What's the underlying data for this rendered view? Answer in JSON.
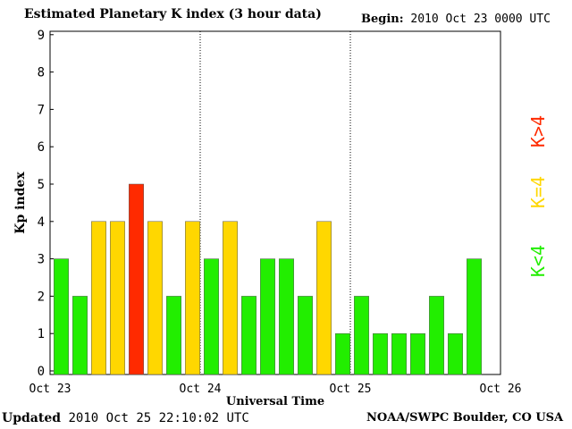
{
  "header": {
    "title": "Estimated Planetary K index (3 hour data)",
    "begin_label": "Begin:",
    "begin_value": "2010 Oct 23 0000 UTC"
  },
  "footer": {
    "updated_label": "Updated",
    "updated_value": "2010 Oct 25 22:10:02 UTC",
    "credit": "NOAA/SWPC Boulder, CO USA"
  },
  "legend": [
    {
      "label": "K>4",
      "color": "#ff2a00"
    },
    {
      "label": "K=4",
      "color": "#ffd700"
    },
    {
      "label": "K<4",
      "color": "#22ee00"
    }
  ],
  "colors": {
    "low": "#22ee00",
    "mid": "#ffd700",
    "high": "#ff2a00"
  },
  "chart_data": {
    "type": "bar",
    "xlabel": "Universal Time",
    "ylabel": "Kp index",
    "ylim": [
      0,
      9
    ],
    "yticks": [
      "0",
      "1",
      "2",
      "3",
      "4",
      "5",
      "6",
      "7",
      "8",
      "9"
    ],
    "xticks": [
      "Oct 23",
      "Oct 24",
      "Oct 25",
      "Oct 26"
    ],
    "day_dividers": true,
    "interval_hours": 3,
    "values": [
      3,
      2,
      4,
      4,
      5,
      4,
      2,
      4,
      3,
      4,
      2,
      3,
      3,
      2,
      4,
      1,
      2,
      1,
      1,
      1,
      2,
      1,
      3
    ]
  }
}
